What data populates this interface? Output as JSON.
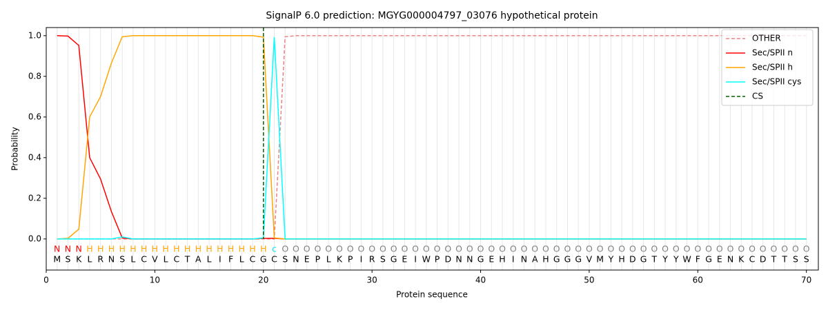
{
  "chart_data": {
    "type": "line",
    "title": "SignalP 6.0 prediction: MGYG000004797_03076 hypothetical protein",
    "xlabel": "Protein sequence",
    "ylabel": "Probability",
    "x": [
      1,
      2,
      3,
      4,
      5,
      6,
      7,
      8,
      9,
      10,
      11,
      12,
      13,
      14,
      15,
      16,
      17,
      18,
      19,
      20,
      21,
      22,
      23,
      24,
      25,
      26,
      27,
      28,
      29,
      30,
      31,
      32,
      33,
      34,
      35,
      36,
      37,
      38,
      39,
      40,
      41,
      42,
      43,
      44,
      45,
      46,
      47,
      48,
      49,
      50,
      51,
      52,
      53,
      54,
      55,
      56,
      57,
      58,
      59,
      60,
      61,
      62,
      63,
      64,
      65,
      66,
      67,
      68,
      69,
      70
    ],
    "sequence": [
      "M",
      "S",
      "K",
      "L",
      "R",
      "N",
      "S",
      "L",
      "C",
      "V",
      "L",
      "C",
      "T",
      "A",
      "L",
      "I",
      "F",
      "L",
      "C",
      "G",
      "C",
      "S",
      "N",
      "E",
      "P",
      "L",
      "K",
      "P",
      "I",
      "R",
      "S",
      "G",
      "E",
      "I",
      "W",
      "P",
      "D",
      "N",
      "N",
      "G",
      "E",
      "H",
      "I",
      "N",
      "A",
      "H",
      "G",
      "G",
      "G",
      "V",
      "M",
      "Y",
      "H",
      "D",
      "G",
      "T",
      "Y",
      "Y",
      "W",
      "F",
      "G",
      "E",
      "N",
      "K",
      "C",
      "D",
      "T",
      "T",
      "S",
      "S"
    ],
    "labels": [
      "N",
      "N",
      "N",
      "H",
      "H",
      "H",
      "H",
      "H",
      "H",
      "H",
      "H",
      "H",
      "H",
      "H",
      "H",
      "H",
      "H",
      "H",
      "H",
      "H",
      "c",
      "O",
      "O",
      "O",
      "O",
      "O",
      "O",
      "O",
      "O",
      "O",
      "O",
      "O",
      "O",
      "O",
      "O",
      "O",
      "O",
      "O",
      "O",
      "O",
      "O",
      "O",
      "O",
      "O",
      "O",
      "O",
      "O",
      "O",
      "O",
      "O",
      "O",
      "O",
      "O",
      "O",
      "O",
      "O",
      "O",
      "O",
      "O",
      "O",
      "O",
      "O",
      "O",
      "O",
      "O",
      "O",
      "O",
      "O",
      "O",
      "O"
    ],
    "label_colors": {
      "N": "#ff0000",
      "H": "#ffa500",
      "c": "#00e5ee",
      "O": "#808080"
    },
    "series": [
      {
        "name": "OTHER",
        "color": "#f08080",
        "dash": true,
        "values": [
          0,
          0,
          0,
          0,
          0,
          0,
          0,
          0,
          0,
          0,
          0,
          0,
          0,
          0,
          0,
          0,
          0,
          0,
          0,
          0,
          0,
          0.995,
          1,
          1,
          1,
          1,
          1,
          1,
          1,
          1,
          1,
          1,
          1,
          1,
          1,
          1,
          1,
          1,
          1,
          1,
          1,
          1,
          1,
          1,
          1,
          1,
          1,
          1,
          1,
          1,
          1,
          1,
          1,
          1,
          1,
          1,
          1,
          1,
          1,
          1,
          1,
          1,
          1,
          1,
          1,
          1,
          1,
          1,
          1,
          1
        ]
      },
      {
        "name": "Sec/SPII n",
        "color": "#ff0000",
        "values": [
          1.0,
          0.998,
          0.952,
          0.4,
          0.295,
          0.135,
          0.005,
          0,
          0,
          0,
          0,
          0,
          0,
          0,
          0,
          0,
          0,
          0,
          0,
          0.003,
          0.003,
          0,
          0,
          0,
          0,
          0,
          0,
          0,
          0,
          0,
          0,
          0,
          0,
          0,
          0,
          0,
          0,
          0,
          0,
          0,
          0,
          0,
          0,
          0,
          0,
          0,
          0,
          0,
          0,
          0,
          0,
          0,
          0,
          0,
          0,
          0,
          0,
          0,
          0,
          0,
          0,
          0,
          0,
          0,
          0,
          0,
          0,
          0,
          0,
          0
        ]
      },
      {
        "name": "Sec/SPII h",
        "color": "#ffa500",
        "values": [
          0,
          0.003,
          0.048,
          0.6,
          0.7,
          0.865,
          0.995,
          1,
          1,
          1,
          1,
          1,
          1,
          1,
          1,
          1,
          1,
          1,
          1,
          0.993,
          0.005,
          0,
          0,
          0,
          0,
          0,
          0,
          0,
          0,
          0,
          0,
          0,
          0,
          0,
          0,
          0,
          0,
          0,
          0,
          0,
          0,
          0,
          0,
          0,
          0,
          0,
          0,
          0,
          0,
          0,
          0,
          0,
          0,
          0,
          0,
          0,
          0,
          0,
          0,
          0,
          0,
          0,
          0,
          0,
          0,
          0,
          0,
          0,
          0,
          0
        ]
      },
      {
        "name": "Sec/SPII cys",
        "color": "#00ffff",
        "values": [
          0,
          0,
          0,
          0,
          0,
          0,
          0.01,
          0,
          0,
          0,
          0,
          0,
          0,
          0,
          0,
          0,
          0,
          0,
          0,
          0.005,
          0.993,
          0,
          0,
          0,
          0,
          0,
          0,
          0,
          0,
          0,
          0,
          0,
          0,
          0,
          0,
          0,
          0,
          0,
          0,
          0,
          0,
          0,
          0,
          0,
          0,
          0,
          0,
          0,
          0,
          0,
          0,
          0,
          0,
          0,
          0,
          0,
          0,
          0,
          0,
          0,
          0,
          0,
          0,
          0,
          0,
          0,
          0,
          0,
          0,
          0
        ]
      }
    ],
    "cs": {
      "name": "CS",
      "color": "#006400",
      "x": 20
    },
    "xlim": [
      0,
      71.1
    ],
    "ylim": [
      -0.153,
      1.04
    ],
    "xticks": [
      0,
      10,
      20,
      30,
      40,
      50,
      60,
      70
    ],
    "yticks": [
      {
        "value": 0,
        "label": "0.0"
      },
      {
        "value": 0.2,
        "label": "0.2"
      },
      {
        "value": 0.4,
        "label": "0.4"
      },
      {
        "value": 0.6,
        "label": "0.6"
      },
      {
        "value": 0.8,
        "label": "0.8"
      },
      {
        "value": 1.0,
        "label": "1.0"
      }
    ],
    "legend": "upper right"
  }
}
